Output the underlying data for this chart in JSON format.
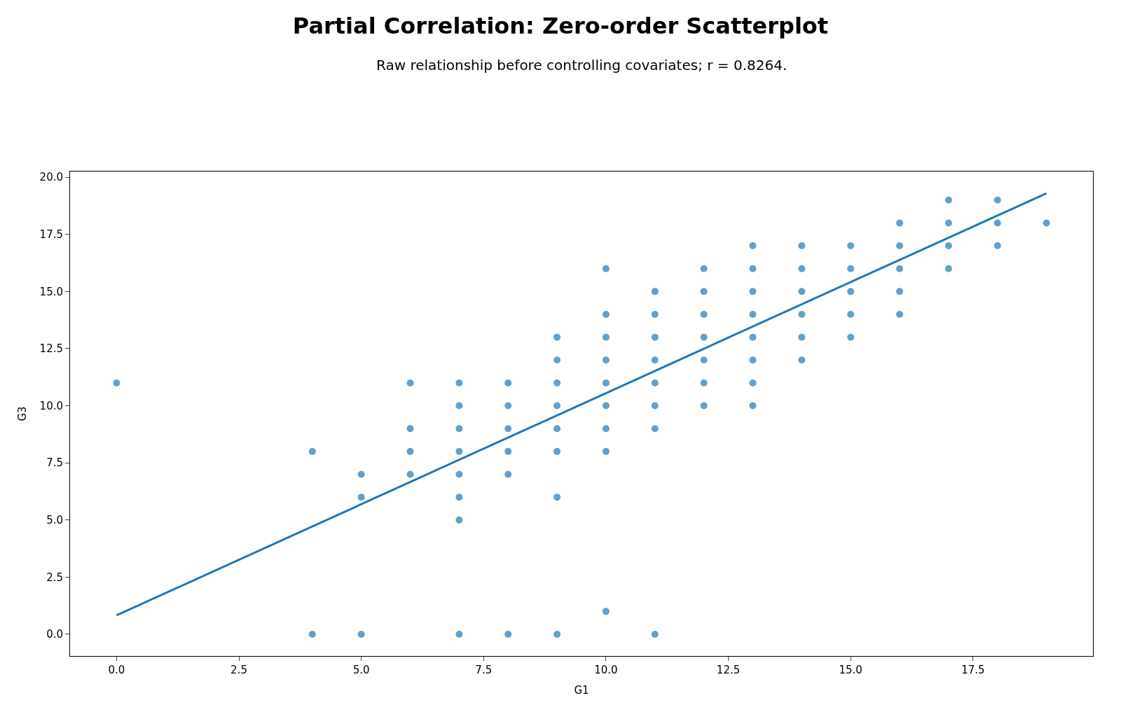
{
  "chart_data": {
    "type": "scatter",
    "title": "Partial Correlation: Zero-order Scatterplot",
    "subtitle": "Raw relationship before controlling covariates; r = 0.8264.",
    "xlabel": "G1",
    "ylabel": "G3",
    "marker": "circle",
    "series": [
      {
        "color": "#1f77b4",
        "x": [
          0,
          4,
          4,
          5,
          5,
          5,
          6,
          6,
          6,
          6,
          7,
          7,
          7,
          7,
          7,
          7,
          7,
          7,
          8,
          8,
          8,
          8,
          8,
          8,
          9,
          9,
          9,
          9,
          9,
          9,
          9,
          9,
          10,
          10,
          10,
          10,
          10,
          10,
          10,
          10,
          10,
          11,
          11,
          11,
          11,
          11,
          11,
          11,
          11,
          12,
          12,
          12,
          12,
          12,
          12,
          12,
          13,
          13,
          13,
          13,
          13,
          13,
          13,
          13,
          14,
          14,
          14,
          14,
          14,
          14,
          15,
          15,
          15,
          15,
          15,
          16,
          16,
          16,
          16,
          16,
          17,
          17,
          17,
          17,
          18,
          18,
          18,
          19
        ],
        "values": [
          11,
          8,
          0,
          7,
          6,
          0,
          11,
          9,
          8,
          7,
          11,
          10,
          9,
          8,
          7,
          6,
          5,
          0,
          11,
          10,
          9,
          8,
          7,
          0,
          13,
          12,
          11,
          10,
          9,
          8,
          6,
          0,
          16,
          14,
          13,
          12,
          11,
          10,
          9,
          8,
          1,
          15,
          14,
          13,
          12,
          11,
          10,
          9,
          0,
          16,
          15,
          14,
          13,
          12,
          11,
          10,
          17,
          16,
          15,
          14,
          13,
          12,
          11,
          10,
          17,
          16,
          15,
          14,
          13,
          12,
          17,
          16,
          15,
          14,
          13,
          18,
          17,
          16,
          15,
          14,
          19,
          18,
          17,
          16,
          19,
          18,
          17,
          18
        ]
      },
      {
        "type": "line",
        "marker": "none",
        "color": "#1f77b4",
        "x": [
          0,
          19
        ],
        "values": [
          0.83,
          19.3
        ]
      }
    ],
    "xlim": [
      -0.95,
      19.95
    ],
    "ylim": [
      -0.95,
      20.25
    ],
    "xticks": [
      {
        "value": 0,
        "label": "0.0"
      },
      {
        "value": 2.5,
        "label": "2.5"
      },
      {
        "value": 5,
        "label": "5.0"
      },
      {
        "value": 7.5,
        "label": "7.5"
      },
      {
        "value": 10,
        "label": "10.0"
      },
      {
        "value": 12.5,
        "label": "12.5"
      },
      {
        "value": 15,
        "label": "15.0"
      },
      {
        "value": 17.5,
        "label": "17.5"
      }
    ],
    "yticks": [
      {
        "value": 0,
        "label": "0.0"
      },
      {
        "value": 2.5,
        "label": "2.5"
      },
      {
        "value": 5,
        "label": "5.0"
      },
      {
        "value": 7.5,
        "label": "7.5"
      },
      {
        "value": 10,
        "label": "10.0"
      },
      {
        "value": 12.5,
        "label": "12.5"
      },
      {
        "value": 15,
        "label": "15.0"
      },
      {
        "value": 17.5,
        "label": "17.5"
      },
      {
        "value": 20,
        "label": "20.0"
      }
    ]
  }
}
